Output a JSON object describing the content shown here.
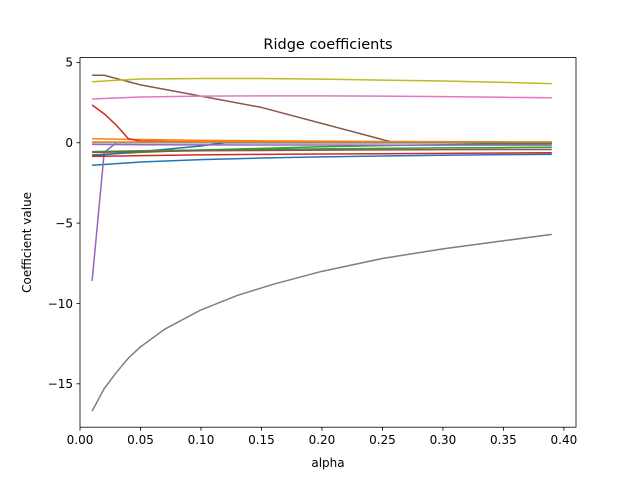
{
  "chart_data": {
    "type": "line",
    "title": "Ridge coefficients",
    "xlabel": "alpha",
    "ylabel": "Coefficient value",
    "xlim": [
      -0.0,
      0.41
    ],
    "ylim": [
      -17.7,
      5.3
    ],
    "xticks": [
      0.0,
      0.05,
      0.1,
      0.15,
      0.2,
      0.25,
      0.3,
      0.35,
      0.4
    ],
    "xtick_labels": [
      "0.00",
      "0.05",
      "0.10",
      "0.15",
      "0.20",
      "0.25",
      "0.30",
      "0.35",
      "0.40"
    ],
    "yticks": [
      5,
      0,
      -5,
      -10,
      -15
    ],
    "ytick_labels": [
      "5",
      "0",
      "−5",
      "−10",
      "−15"
    ],
    "grid": false,
    "legend": "none",
    "series": [
      {
        "color": "#1f77b4",
        "x": [
          0.01,
          0.05,
          0.1,
          0.15,
          0.2,
          0.25,
          0.3,
          0.35,
          0.39
        ],
        "y": [
          -1.4,
          -1.2,
          -1.05,
          -0.95,
          -0.88,
          -0.82,
          -0.78,
          -0.74,
          -0.72
        ]
      },
      {
        "color": "#ff7f0e",
        "x": [
          0.01,
          0.05,
          0.1,
          0.15,
          0.2,
          0.25,
          0.3,
          0.35,
          0.39
        ],
        "y": [
          0.25,
          0.2,
          0.15,
          0.12,
          0.1,
          0.08,
          0.07,
          0.06,
          0.05
        ]
      },
      {
        "color": "#2ca02c",
        "x": [
          0.01,
          0.05,
          0.1,
          0.15,
          0.2,
          0.25,
          0.3,
          0.35,
          0.39
        ],
        "y": [
          -0.75,
          -0.6,
          -0.45,
          -0.35,
          -0.25,
          -0.18,
          -0.12,
          -0.08,
          -0.05
        ]
      },
      {
        "color": "#d62728",
        "x": [
          0.01,
          0.02,
          0.03,
          0.04,
          0.05,
          0.1,
          0.2,
          0.3,
          0.39
        ],
        "y": [
          2.35,
          1.8,
          1.1,
          0.25,
          0.1,
          0.05,
          0.02,
          0.01,
          0.0
        ]
      },
      {
        "color": "#9467bd",
        "x": [
          0.01,
          0.02,
          0.03,
          0.05,
          0.1,
          0.2,
          0.3,
          0.39
        ],
        "y": [
          -8.6,
          -0.6,
          0.0,
          0.0,
          0.0,
          0.0,
          0.0,
          0.0
        ]
      },
      {
        "color": "#8c564b",
        "x": [
          0.01,
          0.02,
          0.05,
          0.1,
          0.15,
          0.2,
          0.25,
          0.26,
          0.3,
          0.35,
          0.39
        ],
        "y": [
          4.2,
          4.2,
          3.6,
          2.9,
          2.2,
          1.2,
          0.2,
          0.0,
          0.0,
          0.0,
          0.0
        ]
      },
      {
        "color": "#e377c2",
        "x": [
          0.01,
          0.05,
          0.1,
          0.15,
          0.2,
          0.25,
          0.3,
          0.35,
          0.39
        ],
        "y": [
          2.72,
          2.85,
          2.9,
          2.92,
          2.92,
          2.9,
          2.87,
          2.83,
          2.8
        ]
      },
      {
        "color": "#7f7f7f",
        "x": [
          0.01,
          0.02,
          0.03,
          0.04,
          0.05,
          0.07,
          0.1,
          0.13,
          0.16,
          0.2,
          0.25,
          0.3,
          0.35,
          0.39
        ],
        "y": [
          -16.7,
          -15.3,
          -14.3,
          -13.4,
          -12.7,
          -11.6,
          -10.4,
          -9.5,
          -8.8,
          -8.0,
          -7.2,
          -6.6,
          -6.1,
          -5.7
        ]
      },
      {
        "color": "#bcbd22",
        "x": [
          0.01,
          0.05,
          0.1,
          0.15,
          0.2,
          0.25,
          0.3,
          0.35,
          0.39
        ],
        "y": [
          3.8,
          3.97,
          4.0,
          4.0,
          3.96,
          3.9,
          3.84,
          3.76,
          3.68
        ]
      },
      {
        "color": "#17becf",
        "x": [
          0.01,
          0.1,
          0.2,
          0.3,
          0.39
        ],
        "y": [
          0.02,
          0.02,
          0.02,
          0.02,
          0.02
        ]
      },
      {
        "color": "#1f77b4",
        "x": [
          0.01,
          0.05,
          0.1,
          0.12,
          0.2,
          0.3,
          0.39
        ],
        "y": [
          -0.8,
          -0.55,
          -0.2,
          0.0,
          0.0,
          0.0,
          0.0
        ]
      },
      {
        "color": "#ff7f0e",
        "x": [
          0.01,
          0.1,
          0.2,
          0.3,
          0.39
        ],
        "y": [
          0.05,
          0.05,
          0.05,
          0.05,
          0.05
        ]
      },
      {
        "color": "#2ca02c",
        "x": [
          0.01,
          0.05,
          0.1,
          0.15,
          0.2,
          0.25,
          0.3,
          0.35,
          0.39
        ],
        "y": [
          -0.55,
          -0.5,
          -0.45,
          -0.42,
          -0.38,
          -0.35,
          -0.32,
          -0.3,
          -0.28
        ]
      },
      {
        "color": "#d62728",
        "x": [
          0.01,
          0.05,
          0.1,
          0.15,
          0.2,
          0.25,
          0.3,
          0.35,
          0.39
        ],
        "y": [
          -0.85,
          -0.8,
          -0.75,
          -0.72,
          -0.7,
          -0.68,
          -0.66,
          -0.64,
          -0.62
        ]
      },
      {
        "color": "#9467bd",
        "x": [
          0.01,
          0.05,
          0.1,
          0.15,
          0.2,
          0.25,
          0.3,
          0.35,
          0.39
        ],
        "y": [
          -0.1,
          -0.12,
          -0.13,
          -0.14,
          -0.14,
          -0.15,
          -0.15,
          -0.15,
          -0.15
        ]
      },
      {
        "color": "#8c564b",
        "x": [
          0.01,
          0.05,
          0.1,
          0.15,
          0.2,
          0.25,
          0.3,
          0.35,
          0.39
        ],
        "y": [
          -0.6,
          -0.55,
          -0.5,
          -0.48,
          -0.46,
          -0.44,
          -0.43,
          -0.42,
          -0.42
        ]
      }
    ]
  }
}
